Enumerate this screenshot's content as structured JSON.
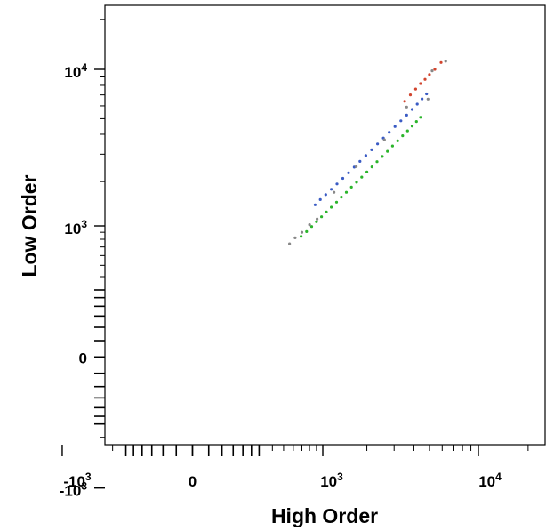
{
  "chart_data": {
    "type": "scatter",
    "title": "",
    "xlabel": "High Order",
    "ylabel": "Low Order",
    "scale": "biexponential (log above ~10^2.5, linear near 0)",
    "xlim": [
      -2300,
      25000
    ],
    "ylim": [
      -1400,
      25000
    ],
    "x_ticks": [
      {
        "base": "-10",
        "exp": "3"
      },
      {
        "base": "0",
        "exp": ""
      },
      {
        "base": "10",
        "exp": "3"
      },
      {
        "base": "10",
        "exp": "4"
      }
    ],
    "y_ticks": [
      {
        "base": "10",
        "exp": "4"
      },
      {
        "base": "10",
        "exp": "3"
      },
      {
        "base": "0",
        "exp": ""
      },
      {
        "base": "-10",
        "exp": "3"
      }
    ],
    "grid": false,
    "legend": "none",
    "series": [
      {
        "color": "#2bb52b",
        "points": [
          [
            690,
            840
          ],
          [
            760,
            910
          ],
          [
            830,
            990
          ],
          [
            900,
            1070
          ],
          [
            980,
            1160
          ],
          [
            1060,
            1250
          ],
          [
            1150,
            1350
          ],
          [
            1250,
            1460
          ],
          [
            1350,
            1580
          ],
          [
            1460,
            1700
          ],
          [
            1580,
            1840
          ],
          [
            1710,
            1980
          ],
          [
            1850,
            2140
          ],
          [
            2000,
            2310
          ],
          [
            2160,
            2490
          ],
          [
            2330,
            2690
          ],
          [
            2520,
            2900
          ],
          [
            2720,
            3130
          ],
          [
            2930,
            3380
          ],
          [
            3160,
            3640
          ],
          [
            3400,
            3920
          ],
          [
            3650,
            4200
          ],
          [
            3900,
            4500
          ],
          [
            4150,
            4800
          ],
          [
            4400,
            5100
          ]
        ]
      },
      {
        "color": "#3a5bc4",
        "points": [
          [
            880,
            1400
          ],
          [
            960,
            1520
          ],
          [
            1050,
            1640
          ],
          [
            1150,
            1780
          ],
          [
            1260,
            1930
          ],
          [
            1380,
            2100
          ],
          [
            1510,
            2280
          ],
          [
            1650,
            2480
          ],
          [
            1800,
            2700
          ],
          [
            1970,
            2940
          ],
          [
            2150,
            3200
          ],
          [
            2350,
            3480
          ],
          [
            2560,
            3790
          ],
          [
            2790,
            4120
          ],
          [
            3040,
            4470
          ],
          [
            3310,
            4850
          ],
          [
            3600,
            5260
          ],
          [
            3900,
            5700
          ],
          [
            4200,
            6150
          ],
          [
            4500,
            6620
          ],
          [
            4800,
            7100
          ]
        ]
      },
      {
        "color": "#d2452e",
        "points": [
          [
            3500,
            6400
          ],
          [
            3800,
            7000
          ],
          [
            4100,
            7600
          ],
          [
            4400,
            8200
          ],
          [
            4700,
            8700
          ],
          [
            5000,
            9300
          ],
          [
            5400,
            10000
          ],
          [
            5900,
            11000
          ]
        ]
      },
      {
        "color": "#888888",
        "points": [
          [
            560,
            740
          ],
          [
            620,
            820
          ],
          [
            700,
            900
          ],
          [
            800,
            1020
          ],
          [
            910,
            1120
          ],
          [
            1200,
            1700
          ],
          [
            1700,
            2500
          ],
          [
            2600,
            3700
          ],
          [
            3600,
            5900
          ],
          [
            5200,
            9800
          ],
          [
            6300,
            11200
          ],
          [
            4900,
            6600
          ]
        ]
      }
    ]
  }
}
